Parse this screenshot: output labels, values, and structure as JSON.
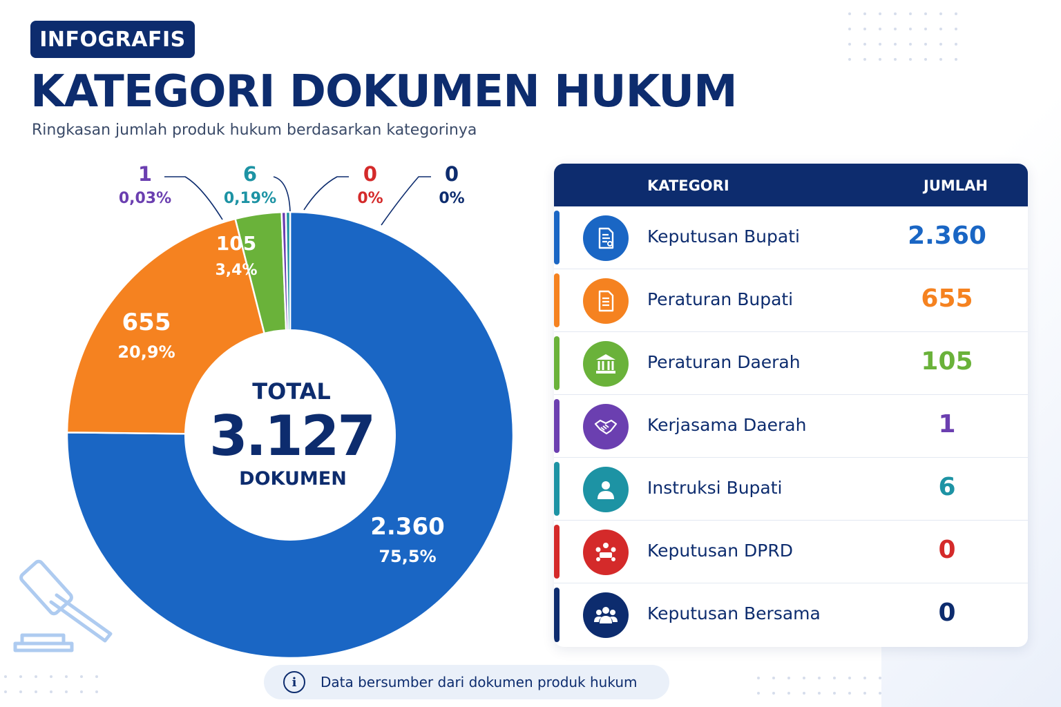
{
  "header": {
    "badge": "INFOGRAFIS",
    "title": "KATEGORI DOKUMEN HUKUM",
    "subtitle": "Ringkasan jumlah produk hukum berdasarkan kategorinya"
  },
  "chart_data": {
    "type": "pie",
    "center": {
      "top": "TOTAL",
      "value": "3.127",
      "bottom": "DOKUMEN"
    },
    "total": 3127,
    "slices": [
      {
        "label": "Keputusan Bupati",
        "value": 2360,
        "value_text": "2.360",
        "percent_text": "75,5%",
        "color": "#1a66c4"
      },
      {
        "label": "Peraturan Bupati",
        "value": 655,
        "value_text": "655",
        "percent_text": "20,9%",
        "color": "#f58220"
      },
      {
        "label": "Peraturan Daerah",
        "value": 105,
        "value_text": "105",
        "percent_text": "3,4%",
        "color": "#6ab23a"
      },
      {
        "label": "Kerjasama Daerah",
        "value": 1,
        "value_text": "1",
        "percent_text": "0,03%",
        "color": "#6b3fb0"
      },
      {
        "label": "Instruksi Bupati",
        "value": 6,
        "value_text": "6",
        "percent_text": "0,19%",
        "color": "#1d93a4"
      },
      {
        "label": "Keputusan DPRD",
        "value": 0,
        "value_text": "0",
        "percent_text": "0%",
        "color": "#d42a2a"
      },
      {
        "label": "Keputusan Bersama",
        "value": 0,
        "value_text": "0",
        "percent_text": "0%",
        "color": "#0d2c6e"
      }
    ]
  },
  "table": {
    "col_category": "KATEGORI",
    "col_count": "JUMLAH",
    "rows": [
      {
        "name": "Keputusan Bupati",
        "value": "2.360",
        "color": "#1a66c4",
        "icon": "document-icon"
      },
      {
        "name": "Peraturan Bupati",
        "value": "655",
        "color": "#f58220",
        "icon": "regulation-icon"
      },
      {
        "name": "Peraturan Daerah",
        "value": "105",
        "color": "#6ab23a",
        "icon": "building-icon"
      },
      {
        "name": "Kerjasama Daerah",
        "value": "1",
        "color": "#6b3fb0",
        "icon": "handshake-icon"
      },
      {
        "name": "Instruksi Bupati",
        "value": "6",
        "color": "#1d93a4",
        "icon": "person-icon"
      },
      {
        "name": "Keputusan DPRD",
        "value": "0",
        "color": "#d42a2a",
        "icon": "meeting-icon"
      },
      {
        "name": "Keputusan Bersama",
        "value": "0",
        "color": "#0d2c6e",
        "icon": "group-icon"
      }
    ]
  },
  "footer": {
    "note": "Data bersumber dari dokumen produk hukum",
    "icon": "info-icon"
  }
}
